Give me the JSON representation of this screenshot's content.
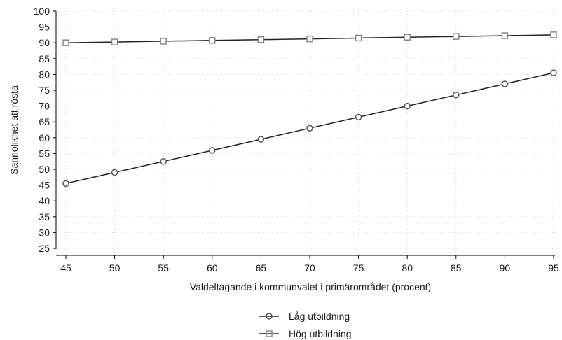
{
  "chart_data": {
    "type": "line",
    "title": "",
    "xlabel": "Valdeltagande i kommunvalet i primärområdet (procent)",
    "ylabel": "Sannolikhet att rösta",
    "x": [
      45,
      50,
      55,
      60,
      65,
      70,
      75,
      80,
      85,
      90,
      95
    ],
    "xlim": [
      45,
      95
    ],
    "ylim": [
      25,
      100
    ],
    "xticks": [
      "45",
      "50",
      "55",
      "60",
      "65",
      "70",
      "75",
      "80",
      "85",
      "90",
      "95"
    ],
    "yticks": [
      "25",
      "30",
      "35",
      "40",
      "45",
      "50",
      "55",
      "60",
      "65",
      "70",
      "75",
      "80",
      "85",
      "90",
      "95",
      "100"
    ],
    "grid": true,
    "legend_position": "bottom-center",
    "series": [
      {
        "name": "Låg utbildning",
        "marker": "circle",
        "color": "#222222",
        "values": [
          45.5,
          49,
          52.5,
          56,
          59.5,
          63,
          66.5,
          70,
          73.5,
          77,
          80.5
        ]
      },
      {
        "name": "Hög utbildning",
        "marker": "square",
        "color": "#222222",
        "values": [
          90,
          90.25,
          90.5,
          90.75,
          91,
          91.25,
          91.5,
          91.75,
          92,
          92.25,
          92.5
        ]
      }
    ]
  }
}
